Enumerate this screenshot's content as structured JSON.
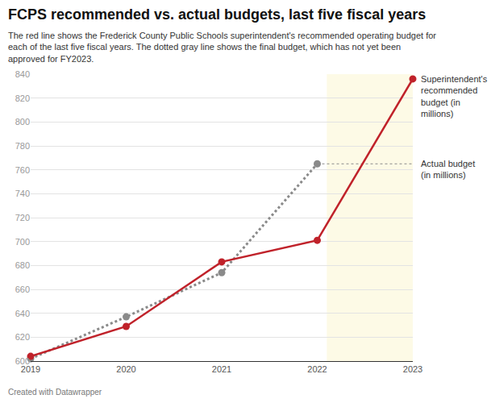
{
  "chart_data": {
    "type": "line",
    "title": "FCPS recommended vs. actual budgets, last five fiscal years",
    "subtitle": "The red line shows the Frederick County Public Schools superintendent's recommended operating budget for each of the last five fiscal years. The dotted gray line shows the final budget, which has not yet been approved for FY2023.",
    "source": "Created with Datawrapper",
    "x": [
      2019,
      2020,
      2021,
      2022,
      2023
    ],
    "series": [
      {
        "name": "Superintendent's recommended budget (in millions)",
        "color": "#c0222a",
        "marker": "circle",
        "line_style": "solid",
        "values": [
          604,
          629,
          683,
          701,
          836
        ]
      },
      {
        "name": "Actual budget (in millions)",
        "color": "#8a8a8a",
        "marker": "circle",
        "line_style": "dot",
        "values": [
          602,
          637,
          674,
          765,
          null
        ]
      }
    ],
    "xlim": [
      2019,
      2023
    ],
    "xticks": [
      2019,
      2020,
      2021,
      2022,
      2023
    ],
    "ylim": [
      600,
      840
    ],
    "yticks": [
      600,
      620,
      640,
      660,
      680,
      700,
      720,
      740,
      760,
      780,
      800,
      820,
      840
    ],
    "grid": "y"
  }
}
